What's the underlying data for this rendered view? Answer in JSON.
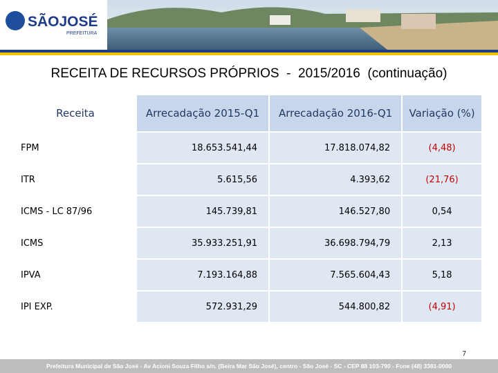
{
  "header": {
    "logo_title": "SÃOJOSÉ",
    "logo_subtitle": "PREFEITURA"
  },
  "title": "RECEITA DE RECURSOS PRÓPRIOS  -  2015/2016  (continuação)",
  "table": {
    "columns": [
      "Receita",
      "Arrecadação 2015-Q1",
      "Arrecadação 2016-Q1",
      "Variação (%)"
    ],
    "rows": [
      {
        "cells": [
          "FPM",
          "18.653.541,44",
          "17.818.074,82",
          "(4,48)"
        ],
        "variation_color": "#c00000"
      },
      {
        "cells": [
          "ITR",
          "5.615,56",
          "4.393,62",
          "(21,76)"
        ],
        "variation_color": "#c00000"
      },
      {
        "cells": [
          "ICMS  -  LC 87/96",
          "145.739,81",
          "146.527,80",
          "0,54"
        ],
        "variation_color": "#000000"
      },
      {
        "cells": [
          "ICMS",
          "35.933.251,91",
          "36.698.794,79",
          "2,13"
        ],
        "variation_color": "#000000"
      },
      {
        "cells": [
          "IPVA",
          "7.193.164,88",
          "7.565.604,43",
          "5,18"
        ],
        "variation_color": "#000000"
      },
      {
        "cells": [
          "IPI EXP.",
          "572.931,29",
          "544.800,82",
          "(4,91)"
        ],
        "variation_color": "#c00000"
      }
    ]
  },
  "page_number": "7",
  "footer": "Prefeitura Municipal de São José - Av Acioni Souza Filho s/n. (Beira Mar São José), centro - São José - SC - CEP 88 103-790 - Fone (48) 3381-0000"
}
